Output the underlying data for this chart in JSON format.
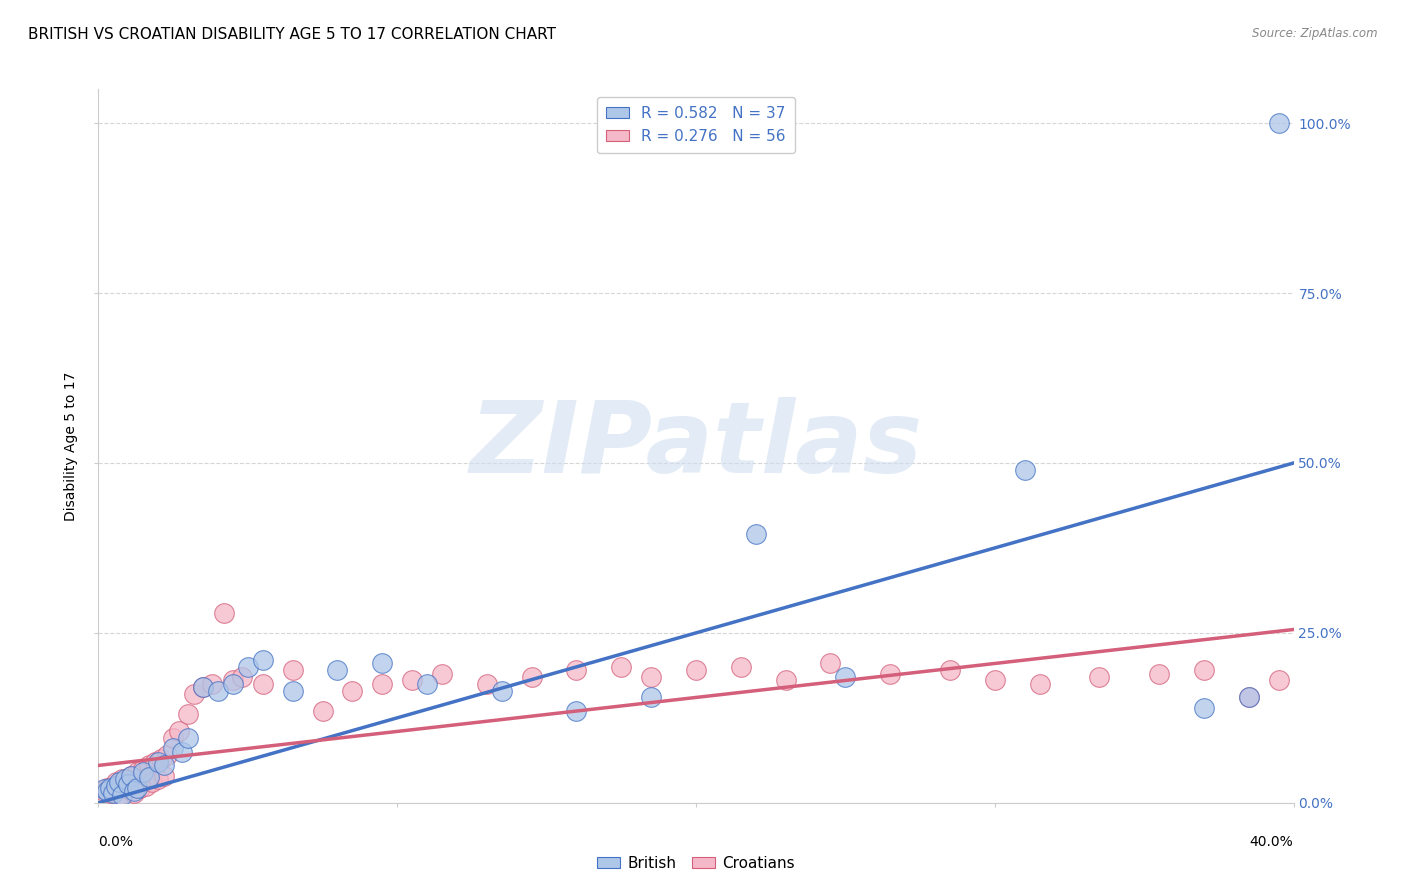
{
  "title": "BRITISH VS CROATIAN DISABILITY AGE 5 TO 17 CORRELATION CHART",
  "source": "Source: ZipAtlas.com",
  "ylabel": "Disability Age 5 to 17",
  "xlim": [
    0.0,
    0.4
  ],
  "ylim": [
    0.0,
    1.05
  ],
  "ytick_values": [
    0.0,
    0.25,
    0.5,
    0.75,
    1.0
  ],
  "watermark": "ZIPatlas",
  "legend_r_british": "0.582",
  "legend_n_british": "37",
  "legend_r_croatian": "0.276",
  "legend_n_croatian": "56",
  "british_color": "#aec6e8",
  "croatian_color": "#f5b8c8",
  "line_british_color": "#4472c4",
  "line_croatian_color": "#d45f7a",
  "right_label_color": "#4472c4",
  "british_x": [
    0.002,
    0.003,
    0.004,
    0.005,
    0.006,
    0.007,
    0.008,
    0.009,
    0.01,
    0.011,
    0.012,
    0.013,
    0.015,
    0.017,
    0.02,
    0.022,
    0.025,
    0.028,
    0.03,
    0.035,
    0.04,
    0.045,
    0.05,
    0.055,
    0.065,
    0.08,
    0.095,
    0.11,
    0.135,
    0.16,
    0.185,
    0.22,
    0.25,
    0.31,
    0.37,
    0.385,
    0.395
  ],
  "british_y": [
    0.02,
    0.018,
    0.022,
    0.015,
    0.025,
    0.03,
    0.012,
    0.035,
    0.028,
    0.04,
    0.018,
    0.022,
    0.045,
    0.038,
    0.06,
    0.055,
    0.08,
    0.075,
    0.095,
    0.17,
    0.165,
    0.175,
    0.2,
    0.21,
    0.165,
    0.195,
    0.205,
    0.175,
    0.165,
    0.135,
    0.155,
    0.395,
    0.185,
    0.49,
    0.14,
    0.155,
    1.0
  ],
  "croatian_x": [
    0.002,
    0.003,
    0.004,
    0.005,
    0.006,
    0.007,
    0.008,
    0.009,
    0.01,
    0.011,
    0.012,
    0.013,
    0.014,
    0.015,
    0.016,
    0.017,
    0.018,
    0.019,
    0.02,
    0.021,
    0.022,
    0.023,
    0.025,
    0.027,
    0.03,
    0.032,
    0.035,
    0.038,
    0.042,
    0.045,
    0.048,
    0.055,
    0.065,
    0.075,
    0.085,
    0.095,
    0.105,
    0.115,
    0.13,
    0.145,
    0.16,
    0.175,
    0.185,
    0.2,
    0.215,
    0.23,
    0.245,
    0.265,
    0.285,
    0.3,
    0.315,
    0.335,
    0.355,
    0.37,
    0.385,
    0.395
  ],
  "croatian_y": [
    0.018,
    0.022,
    0.015,
    0.025,
    0.03,
    0.012,
    0.035,
    0.028,
    0.02,
    0.04,
    0.015,
    0.045,
    0.022,
    0.05,
    0.025,
    0.055,
    0.03,
    0.06,
    0.035,
    0.065,
    0.04,
    0.07,
    0.095,
    0.105,
    0.13,
    0.16,
    0.17,
    0.175,
    0.28,
    0.18,
    0.185,
    0.175,
    0.195,
    0.135,
    0.165,
    0.175,
    0.18,
    0.19,
    0.175,
    0.185,
    0.195,
    0.2,
    0.185,
    0.195,
    0.2,
    0.18,
    0.205,
    0.19,
    0.195,
    0.18,
    0.175,
    0.185,
    0.19,
    0.195,
    0.155,
    0.18
  ],
  "british_line_x0": 0.0,
  "british_line_x1": 0.4,
  "british_line_y0": 0.0,
  "british_line_y1": 0.5,
  "croatian_line_x0": 0.0,
  "croatian_line_x1": 0.4,
  "croatian_line_y0": 0.055,
  "croatian_line_y1": 0.255,
  "grid_color": "#cccccc",
  "background_color": "#ffffff",
  "title_fontsize": 11,
  "axis_label_fontsize": 10,
  "tick_fontsize": 10
}
